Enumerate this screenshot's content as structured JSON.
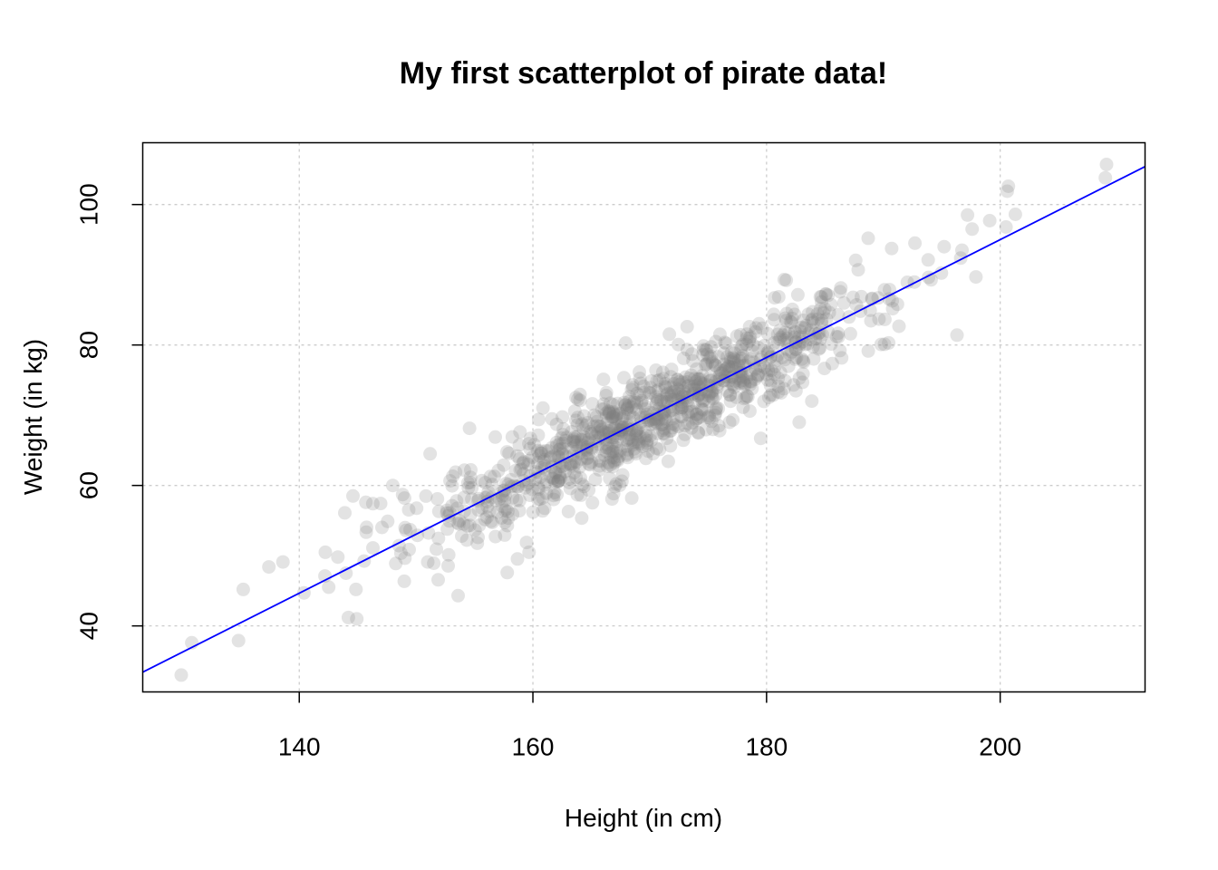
{
  "chart_data": {
    "type": "scatter",
    "title": "My first scatterplot of pirate data!",
    "xlabel": "Height (in cm)",
    "ylabel": "Weight (in kg)",
    "xlim": [
      126.6,
      212.4
    ],
    "ylim": [
      30.6,
      108.8
    ],
    "xticks": [
      140,
      160,
      180,
      200
    ],
    "yticks": [
      40,
      60,
      80,
      100
    ],
    "grid": true,
    "grid_color": "#cccccc",
    "point_color": "#808080",
    "point_opacity": 0.22,
    "regression_line": {
      "intercept": -72.8,
      "slope": 0.839,
      "color": "#0000ff"
    },
    "n_cloud_points": 1000,
    "cloud": {
      "x_mean": 170,
      "x_sd": 10,
      "resid_sd": 3.2
    },
    "outlier_points": [
      {
        "x": 129.9,
        "y": 33.0
      },
      {
        "x": 130.8,
        "y": 37.6
      },
      {
        "x": 134.8,
        "y": 37.9
      },
      {
        "x": 135.2,
        "y": 45.2
      },
      {
        "x": 137.4,
        "y": 48.4
      },
      {
        "x": 138.6,
        "y": 49.1
      },
      {
        "x": 140.4,
        "y": 44.7
      },
      {
        "x": 142.2,
        "y": 47.1
      },
      {
        "x": 143.3,
        "y": 49.8
      },
      {
        "x": 144.2,
        "y": 41.2
      },
      {
        "x": 144.0,
        "y": 47.5
      },
      {
        "x": 144.6,
        "y": 58.5
      },
      {
        "x": 143.9,
        "y": 56.1
      },
      {
        "x": 145.7,
        "y": 57.6
      },
      {
        "x": 146.3,
        "y": 57.4
      },
      {
        "x": 148.0,
        "y": 60.0
      },
      {
        "x": 151.2,
        "y": 64.5
      },
      {
        "x": 153.6,
        "y": 44.3
      },
      {
        "x": 157.8,
        "y": 47.6
      },
      {
        "x": 173.2,
        "y": 82.6
      },
      {
        "x": 179.5,
        "y": 66.7
      },
      {
        "x": 182.8,
        "y": 69.0
      },
      {
        "x": 188.7,
        "y": 95.2
      },
      {
        "x": 190.1,
        "y": 80.1
      },
      {
        "x": 192.7,
        "y": 94.5
      },
      {
        "x": 195.2,
        "y": 94.0
      },
      {
        "x": 196.3,
        "y": 81.4
      },
      {
        "x": 197.6,
        "y": 96.5
      },
      {
        "x": 197.2,
        "y": 98.5
      },
      {
        "x": 199.1,
        "y": 97.7
      },
      {
        "x": 200.5,
        "y": 96.8
      },
      {
        "x": 200.6,
        "y": 101.9
      },
      {
        "x": 200.7,
        "y": 102.6
      },
      {
        "x": 201.3,
        "y": 98.6
      },
      {
        "x": 209.1,
        "y": 105.7
      },
      {
        "x": 209.0,
        "y": 103.8
      }
    ]
  }
}
